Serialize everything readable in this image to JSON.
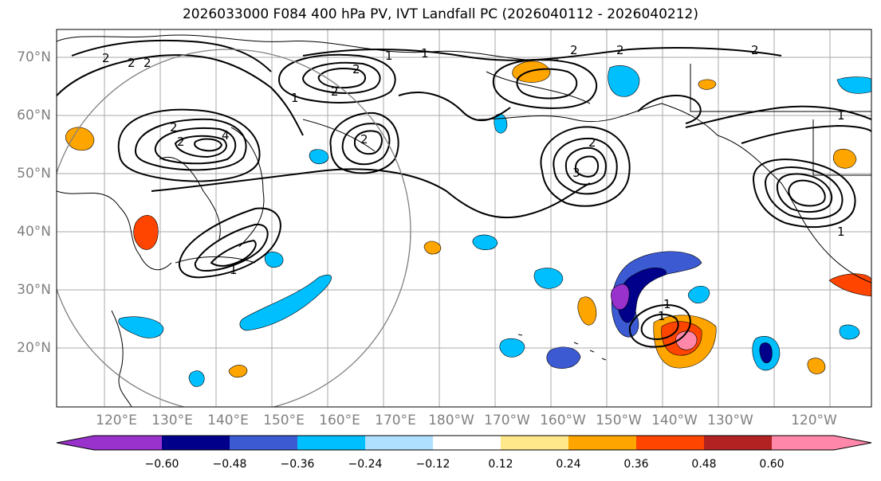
{
  "title": "2026033000 F084 400 hPa PV, IVT Landfall PC (2026040112 - 2026040212)",
  "lat_labels": [
    "70°N",
    "60°N",
    "50°N",
    "40°N",
    "30°N",
    "20°N"
  ],
  "lon_labels": [
    "120°E",
    "130°E",
    "140°E",
    "150°E",
    "160°E",
    "170°E",
    "180°W",
    "170°W",
    "160°W",
    "150°W",
    "140°W",
    "130°W",
    "120°W"
  ],
  "colorbar": {
    "ticks": [
      "−0.60",
      "−0.48",
      "−0.36",
      "−0.24",
      "−0.12",
      "0.12",
      "0.24",
      "0.36",
      "0.48",
      "0.60"
    ],
    "colors": [
      "#9932cc",
      "#00008b",
      "#3c5ad2",
      "#00bfff",
      "#b0e0ff",
      "#ffffff",
      "#ffe88a",
      "#ffa500",
      "#ff4500",
      "#b22222",
      "#ff88aa"
    ]
  },
  "contour_labels": [
    "2",
    "2",
    "2",
    "1",
    "2",
    "1",
    "2",
    "2",
    "2",
    "4",
    "2",
    "2",
    "1",
    "2",
    "2",
    "3",
    "1",
    "1",
    "2",
    "1",
    "1",
    "1"
  ]
}
